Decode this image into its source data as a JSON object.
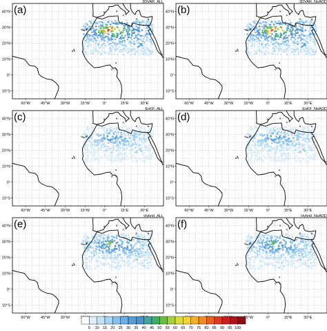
{
  "panels": [
    {
      "label": "(a)",
      "title": "3DVAR_ALL"
    },
    {
      "label": "(b)",
      "title": "3DVAR_NoAOD"
    },
    {
      "label": "(c)",
      "title": "EnKF_ALL"
    },
    {
      "label": "(d)",
      "title": "EnKF_NoAOD"
    },
    {
      "label": "(e)",
      "title": "Hybrid_ALL"
    },
    {
      "label": "(f)",
      "title": "Hybrid_NoAOD"
    }
  ],
  "lat_labels": [
    "40°N",
    "30°N",
    "20°N",
    "10°N",
    "0°",
    "10°S"
  ],
  "lon_labels": [
    "60°W",
    "45°W",
    "30°W",
    "15°W",
    "0°",
    "15°E",
    "30°E"
  ],
  "colorbar": {
    "ticks": [
      5,
      10,
      15,
      20,
      25,
      30,
      35,
      40,
      45,
      50,
      55,
      60,
      65,
      70,
      75,
      80,
      85,
      90,
      95,
      100
    ],
    "colors": [
      "#ffffff",
      "#dff0fb",
      "#c3e3f7",
      "#a5d3f2",
      "#86c1ec",
      "#6aaee3",
      "#5b9bd5",
      "#4f8fc9",
      "#41a3a0",
      "#3fae6a",
      "#6bbf3f",
      "#a6cf3b",
      "#d9dc38",
      "#f5d430",
      "#f5b02a",
      "#f08a24",
      "#e9601f",
      "#df3a1e",
      "#cc1f1f",
      "#b0141b",
      "#8b0d16"
    ]
  }
}
